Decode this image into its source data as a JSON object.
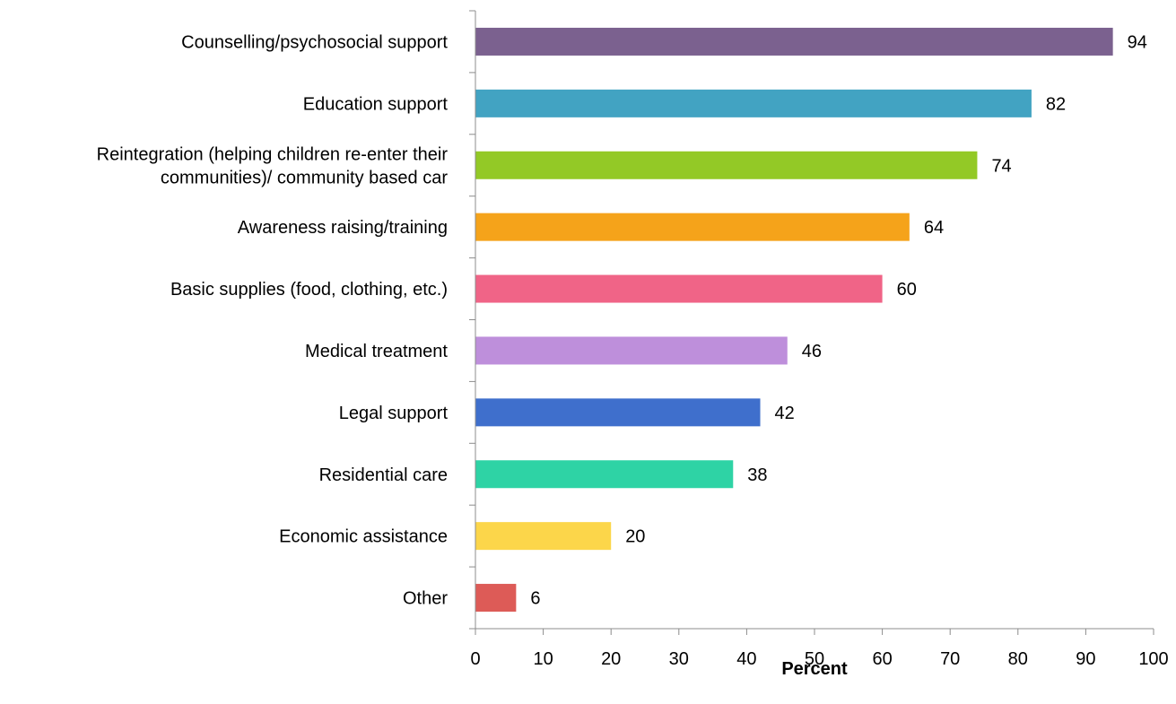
{
  "chart_data": {
    "type": "bar",
    "orientation": "horizontal",
    "title": "",
    "xlabel": "Percent",
    "ylabel": "",
    "xlim": [
      0,
      100
    ],
    "x_ticks": [
      "0",
      "10",
      "20",
      "30",
      "40",
      "50",
      "60",
      "70",
      "80",
      "90",
      "100"
    ],
    "grid": false,
    "legend": "none",
    "categories": [
      [
        "Counselling/psychosocial support"
      ],
      [
        "Education support"
      ],
      [
        "Reintegration (helping children re-enter their",
        "communities)/ community based car"
      ],
      [
        "Awareness raising/training"
      ],
      [
        "Basic supplies (food, clothing, etc.)"
      ],
      [
        "Medical treatment"
      ],
      [
        "Legal support"
      ],
      [
        "Residential care"
      ],
      [
        "Economic assistance"
      ],
      [
        "Other"
      ]
    ],
    "values": [
      94,
      82,
      74,
      64,
      60,
      46,
      42,
      38,
      20,
      6
    ],
    "colors": [
      "#7b618f",
      "#42a3c2",
      "#93c926",
      "#f5a31a",
      "#f06487",
      "#be8fdb",
      "#3f6fcc",
      "#2ed3a5",
      "#fcd64a",
      "#dd5b57"
    ]
  }
}
